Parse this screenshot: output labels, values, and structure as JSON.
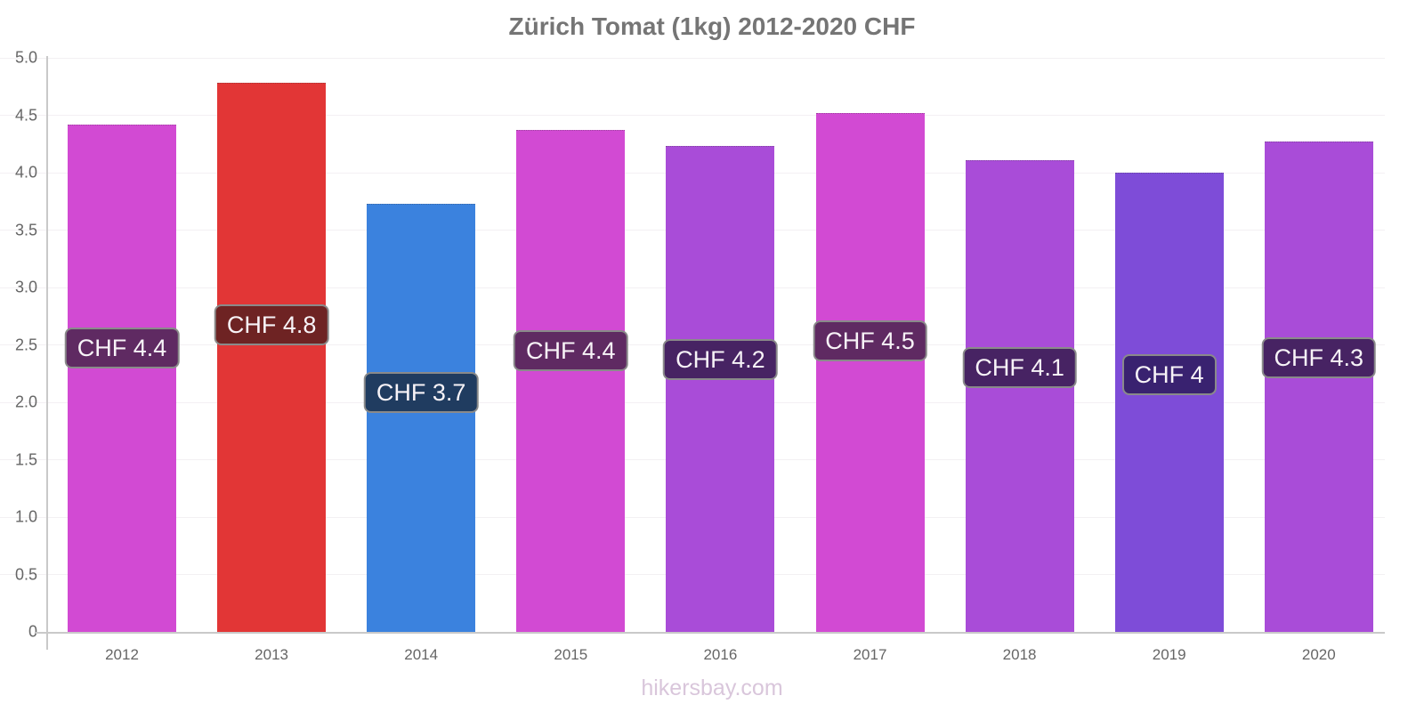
{
  "title": "Zürich Tomat (1kg) 2012-2020 CHF",
  "footer": "hikersbay.com",
  "chart_data": {
    "type": "bar",
    "title": "Zürich Tomat (1kg) 2012-2020 CHF",
    "xlabel": "",
    "ylabel": "",
    "ylim": [
      0,
      5
    ],
    "grid": true,
    "legend": "none",
    "categories": [
      "2012",
      "2013",
      "2014",
      "2015",
      "2016",
      "2017",
      "2018",
      "2019",
      "2020"
    ],
    "values": [
      4.42,
      4.78,
      3.73,
      4.37,
      4.23,
      4.52,
      4.11,
      4.0,
      4.27
    ],
    "data_labels": [
      "CHF 4.4",
      "CHF 4.8",
      "CHF 3.7",
      "CHF 4.4",
      "CHF 4.2",
      "CHF 4.5",
      "CHF 4.1",
      "CHF 4",
      "CHF 4.3"
    ],
    "bar_colors": [
      "#d24ad3",
      "#e23636",
      "#3b82de",
      "#d24ad3",
      "#a94cd8",
      "#d24ad3",
      "#a94cd8",
      "#7e4cd8",
      "#a94cd8"
    ],
    "label_bg_colors": [
      "#5f2a62",
      "#6e2323",
      "#203c60",
      "#5f2a62",
      "#472363",
      "#5f2a62",
      "#472363",
      "#392270",
      "#472363"
    ],
    "yticks": [
      {
        "value": 5.0,
        "label": "5.0"
      },
      {
        "value": 4.5,
        "label": "4.5"
      },
      {
        "value": 4.0,
        "label": "4.0"
      },
      {
        "value": 3.5,
        "label": "3.5"
      },
      {
        "value": 3.0,
        "label": "3.0"
      },
      {
        "value": 2.5,
        "label": "2.5"
      },
      {
        "value": 2.0,
        "label": "2.0"
      },
      {
        "value": 1.5,
        "label": "1.5"
      },
      {
        "value": 1.0,
        "label": "1.0"
      },
      {
        "value": 0.5,
        "label": "0.5"
      },
      {
        "value": 0.0,
        "label": "0"
      }
    ],
    "axis_color": "#c9c9c9",
    "gridline_color": "#f3f0f3",
    "tick_text_color": "#666666",
    "title_color": "#757575",
    "watermark_color": "#d9c6db"
  }
}
